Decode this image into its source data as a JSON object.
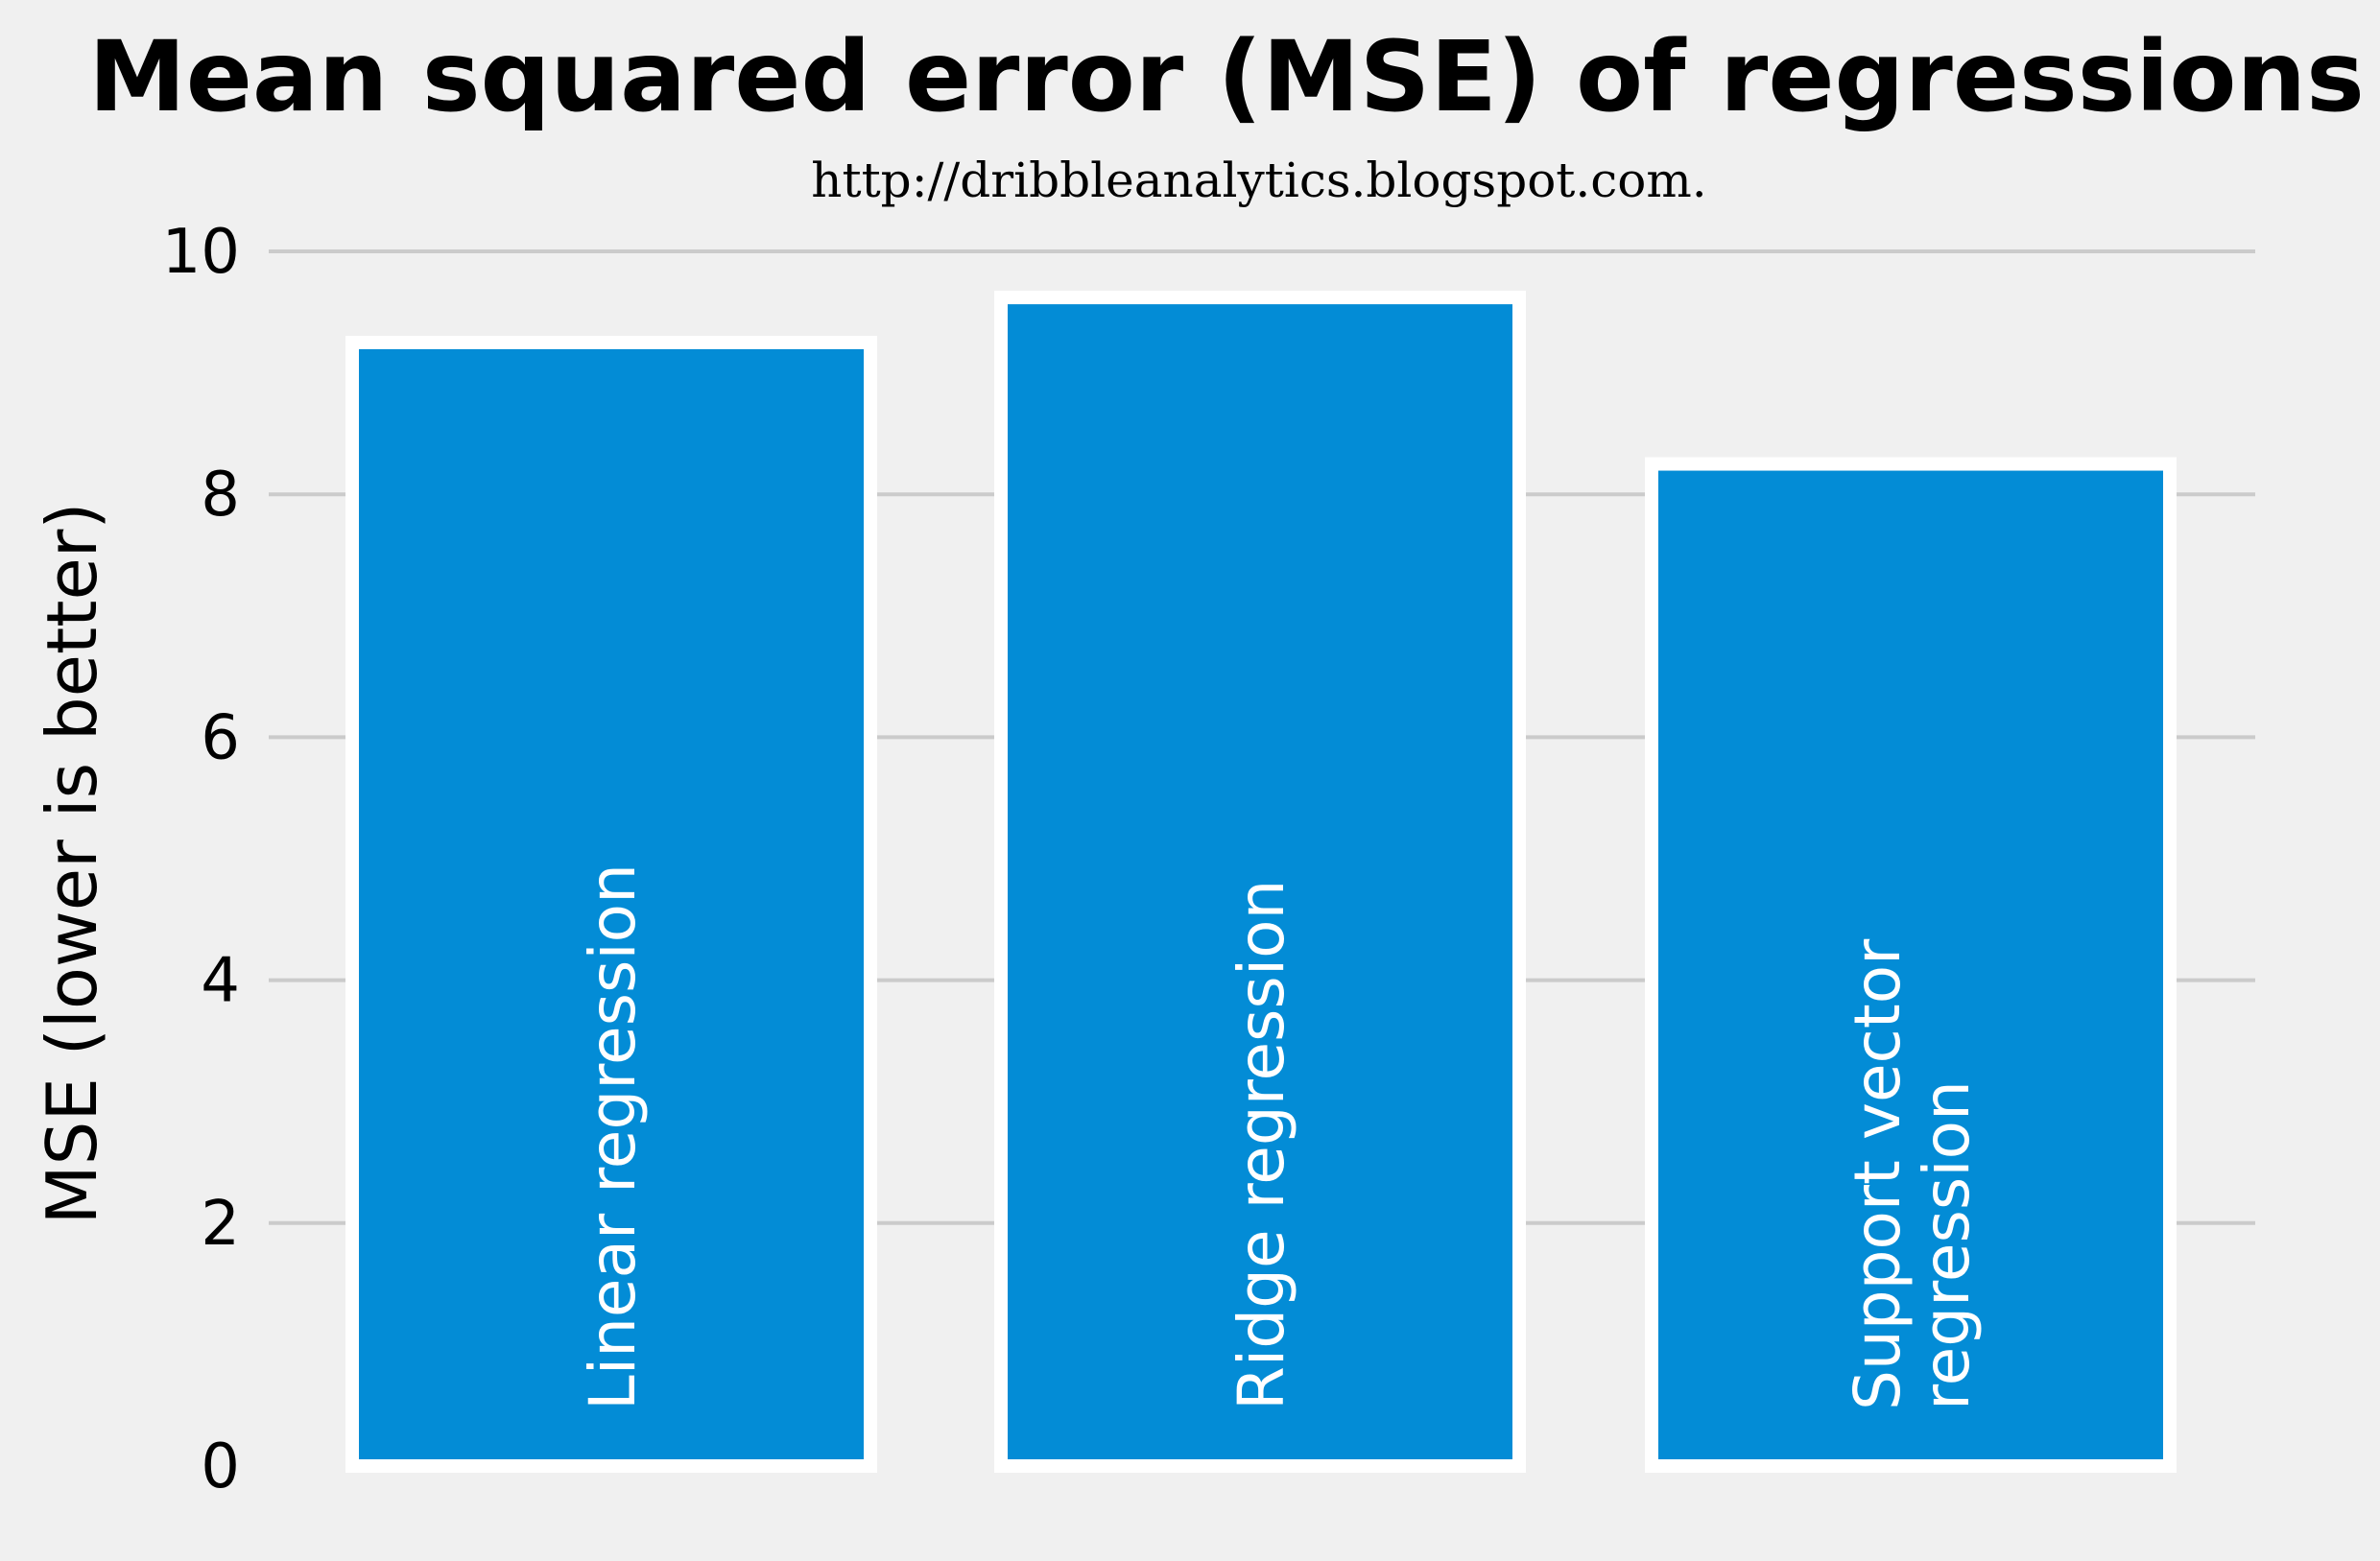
{
  "chart_data": {
    "type": "bar",
    "title": "Mean squared error (MSE) of regressions",
    "subtitle": "http://dribbleanalytics.blogspot.com.",
    "ylabel": "MSE (lower is better)",
    "ylim": [
      0,
      10
    ],
    "yticks": [
      0,
      2,
      4,
      6,
      8,
      10
    ],
    "grid": "horizontal",
    "colors": {
      "bar": "#038cd6",
      "bar_edge": "#ffffff",
      "background": "#f0f0f0",
      "grid": "#cbcbcb"
    },
    "categories": [
      [
        "Linear regression"
      ],
      [
        "Ridge regression"
      ],
      [
        "Support vector",
        "regression"
      ]
    ],
    "values": [
      9.25,
      9.62,
      8.25
    ]
  }
}
